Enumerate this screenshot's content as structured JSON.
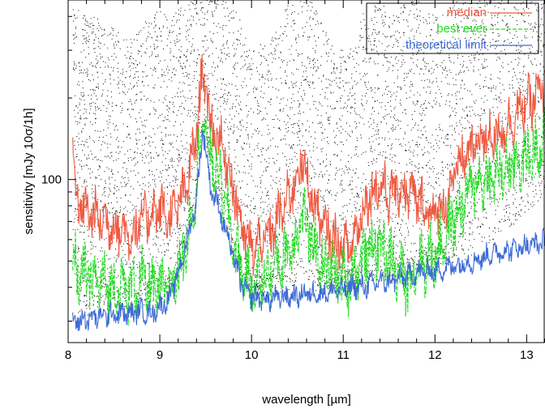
{
  "chart_data": {
    "type": "line",
    "xlabel": "wavelength [µm]",
    "ylabel": "sensitivity [mJy 10σ/1h]",
    "xlim": [
      8.0,
      13.2
    ],
    "ylim_log": [
      25,
      460
    ],
    "y_scale": "log",
    "x_ticks": [
      8,
      9,
      10,
      11,
      12,
      13
    ],
    "x_tick_labels": [
      "8",
      "9",
      "10",
      "11",
      "12",
      "13"
    ],
    "y_ticks": [
      100
    ],
    "y_tick_labels": [
      "100"
    ],
    "legend_position": "top-right",
    "background_points": "dense black dot scatter of individual measurements",
    "series": [
      {
        "name": "median",
        "color": "#f05a40",
        "style": "solid",
        "x": [
          8.05,
          8.1,
          8.3,
          8.5,
          8.7,
          8.8,
          8.9,
          9.0,
          9.1,
          9.2,
          9.3,
          9.4,
          9.47,
          9.55,
          9.6,
          9.65,
          9.7,
          9.8,
          9.9,
          10.0,
          10.2,
          10.4,
          10.5,
          10.55,
          10.6,
          10.7,
          10.8,
          10.9,
          11.0,
          11.1,
          11.2,
          11.3,
          11.4,
          11.5,
          11.6,
          11.7,
          11.8,
          11.9,
          12.0,
          12.1,
          12.2,
          12.3,
          12.4,
          12.5,
          12.6,
          12.7,
          12.8,
          12.9,
          13.0,
          13.1,
          13.2
        ],
        "values": [
          135,
          80,
          73,
          68,
          62,
          70,
          75,
          78,
          72,
          80,
          95,
          150,
          260,
          160,
          150,
          140,
          125,
          95,
          65,
          55,
          62,
          85,
          105,
          118,
          100,
          78,
          65,
          60,
          55,
          58,
          75,
          90,
          95,
          88,
          92,
          90,
          85,
          78,
          75,
          80,
          100,
          120,
          130,
          140,
          145,
          150,
          160,
          175,
          190,
          200,
          220
        ]
      },
      {
        "name": "best ever",
        "color": "#22dd22",
        "style": "dashed",
        "x": [
          8.05,
          8.1,
          8.3,
          8.5,
          8.7,
          8.8,
          8.9,
          9.0,
          9.1,
          9.2,
          9.3,
          9.4,
          9.47,
          9.55,
          9.6,
          9.65,
          9.7,
          9.8,
          9.9,
          10.0,
          10.2,
          10.4,
          10.5,
          10.55,
          10.6,
          10.7,
          10.8,
          10.9,
          11.0,
          11.1,
          11.2,
          11.3,
          11.4,
          11.5,
          11.6,
          11.7,
          11.8,
          11.9,
          12.0,
          12.1,
          12.2,
          12.3,
          12.4,
          12.5,
          12.6,
          12.7,
          12.8,
          12.9,
          13.0,
          13.1,
          13.2
        ],
        "values": [
          55,
          45,
          42,
          40,
          39,
          42,
          40,
          38,
          40,
          45,
          60,
          100,
          170,
          120,
          110,
          100,
          85,
          60,
          45,
          40,
          45,
          55,
          62,
          80,
          65,
          55,
          48,
          45,
          42,
          44,
          50,
          55,
          58,
          52,
          45,
          42,
          48,
          50,
          52,
          60,
          70,
          80,
          95,
          100,
          100,
          105,
          110,
          115,
          120,
          130,
          140
        ]
      },
      {
        "name": "theoretical limit",
        "color": "#3d6bd6",
        "style": "solid",
        "x": [
          8.05,
          8.1,
          8.3,
          8.5,
          8.7,
          8.8,
          8.9,
          9.0,
          9.1,
          9.2,
          9.3,
          9.4,
          9.47,
          9.55,
          9.6,
          9.65,
          9.7,
          9.8,
          9.9,
          10.0,
          10.2,
          10.4,
          10.5,
          10.55,
          10.6,
          10.7,
          10.8,
          10.9,
          11.0,
          11.1,
          11.2,
          11.3,
          11.4,
          11.5,
          11.6,
          11.7,
          11.8,
          11.9,
          12.0,
          12.1,
          12.2,
          12.3,
          12.4,
          12.5,
          12.6,
          12.7,
          12.8,
          12.9,
          13.0,
          13.1,
          13.2
        ],
        "values": [
          30,
          30,
          31,
          32,
          32,
          33,
          32,
          34,
          36,
          45,
          60,
          85,
          155,
          95,
          85,
          78,
          68,
          52,
          40,
          37,
          36,
          37,
          37,
          38,
          38,
          38,
          38,
          39,
          39,
          40,
          40,
          41,
          42,
          42,
          43,
          44,
          45,
          46,
          46,
          47,
          48,
          49,
          50,
          51,
          53,
          54,
          55,
          56,
          57,
          58,
          59
        ]
      }
    ]
  }
}
